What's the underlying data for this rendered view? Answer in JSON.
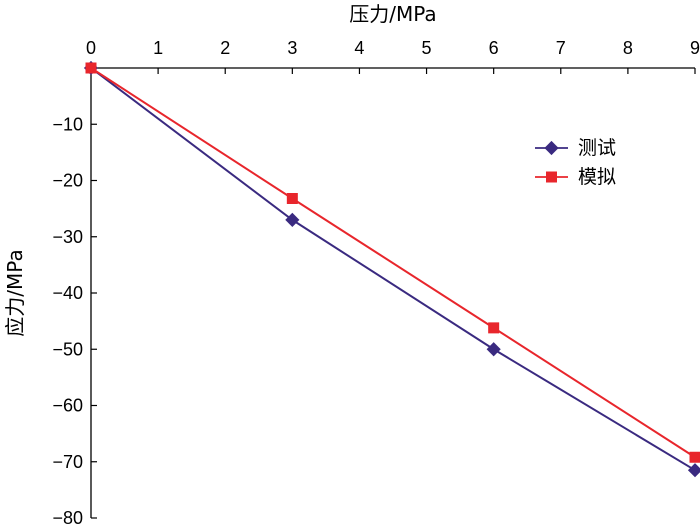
{
  "chart_data": {
    "type": "line",
    "xlabel": "压力/MPa",
    "ylabel": "应力/MPa",
    "x_axis_position": "top",
    "xlim": [
      0,
      9
    ],
    "ylim": [
      -80,
      0
    ],
    "xticks": [
      0,
      1,
      2,
      3,
      4,
      5,
      6,
      7,
      8,
      9
    ],
    "yticks": [
      -10,
      -20,
      -30,
      -40,
      -50,
      -60,
      -70,
      -80
    ],
    "grid": false,
    "legend_position": "top-right",
    "x": [
      0,
      3,
      6,
      9
    ],
    "series": [
      {
        "name": "测试",
        "values": [
          0,
          -27,
          -50,
          -71.5
        ],
        "color": "#3a2a80",
        "marker": "diamond"
      },
      {
        "name": "模拟",
        "values": [
          0,
          -23.2,
          -46.2,
          -69.2
        ],
        "color": "#e8262c",
        "marker": "square"
      }
    ]
  }
}
